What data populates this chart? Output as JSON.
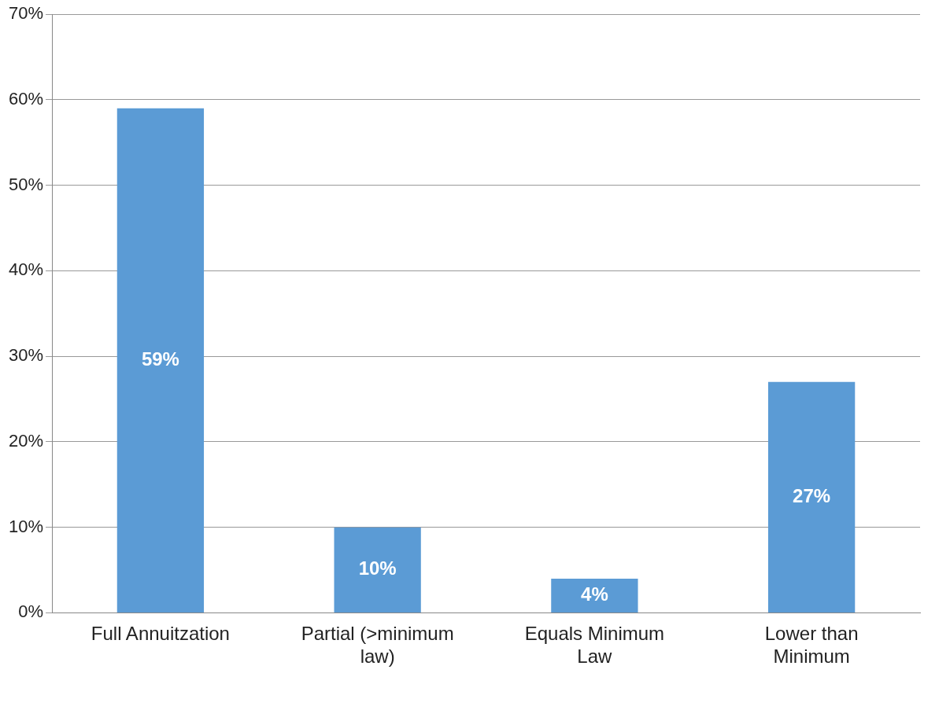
{
  "chart_data": {
    "type": "bar",
    "categories": [
      "Full Annuitzation",
      "Partial (>minimum law)",
      "Equals Minimum Law",
      "Lower than Minimum"
    ],
    "values": [
      59,
      10,
      4,
      27
    ],
    "color": "#5b9bd5",
    "value_labels": [
      "59%",
      "10%",
      "4%",
      "27%"
    ],
    "ylim": [
      0,
      70
    ],
    "yticks": [
      {
        "value": 0,
        "label": "0%"
      },
      {
        "value": 10,
        "label": "10%"
      },
      {
        "value": 20,
        "label": "20%"
      },
      {
        "value": 30,
        "label": "30%"
      },
      {
        "value": 40,
        "label": "40%"
      },
      {
        "value": 50,
        "label": "50%"
      },
      {
        "value": 60,
        "label": "60%"
      },
      {
        "value": 70,
        "label": "70%"
      }
    ],
    "grid": "y"
  }
}
